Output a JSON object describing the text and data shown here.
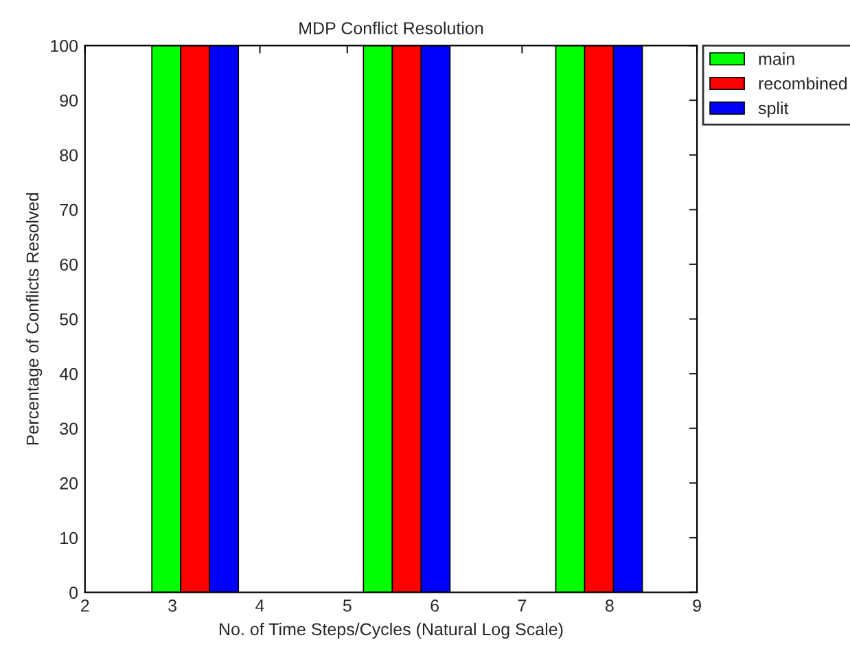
{
  "chart_data": {
    "type": "bar",
    "title": "MDP Conflict Resolution",
    "xlabel": "No. of Time Steps/Cycles (Natural Log Scale)",
    "ylabel": "Percentage of Conflicts Resolved",
    "x": [
      3.26,
      5.68,
      7.88
    ],
    "series": [
      {
        "name": "main",
        "color": "#00ff00",
        "values": [
          100,
          100,
          100
        ]
      },
      {
        "name": "recombined",
        "color": "#ff0000",
        "values": [
          100,
          100,
          100
        ]
      },
      {
        "name": "split",
        "color": "#0000ff",
        "values": [
          100,
          100,
          100
        ]
      }
    ],
    "xlim": [
      2,
      9
    ],
    "xticks": [
      2,
      3,
      4,
      5,
      6,
      7,
      8,
      9
    ],
    "ylim": [
      0,
      100
    ],
    "yticks": [
      0,
      10,
      20,
      30,
      40,
      50,
      60,
      70,
      80,
      90,
      100
    ],
    "grid": false,
    "legend": "top right"
  }
}
